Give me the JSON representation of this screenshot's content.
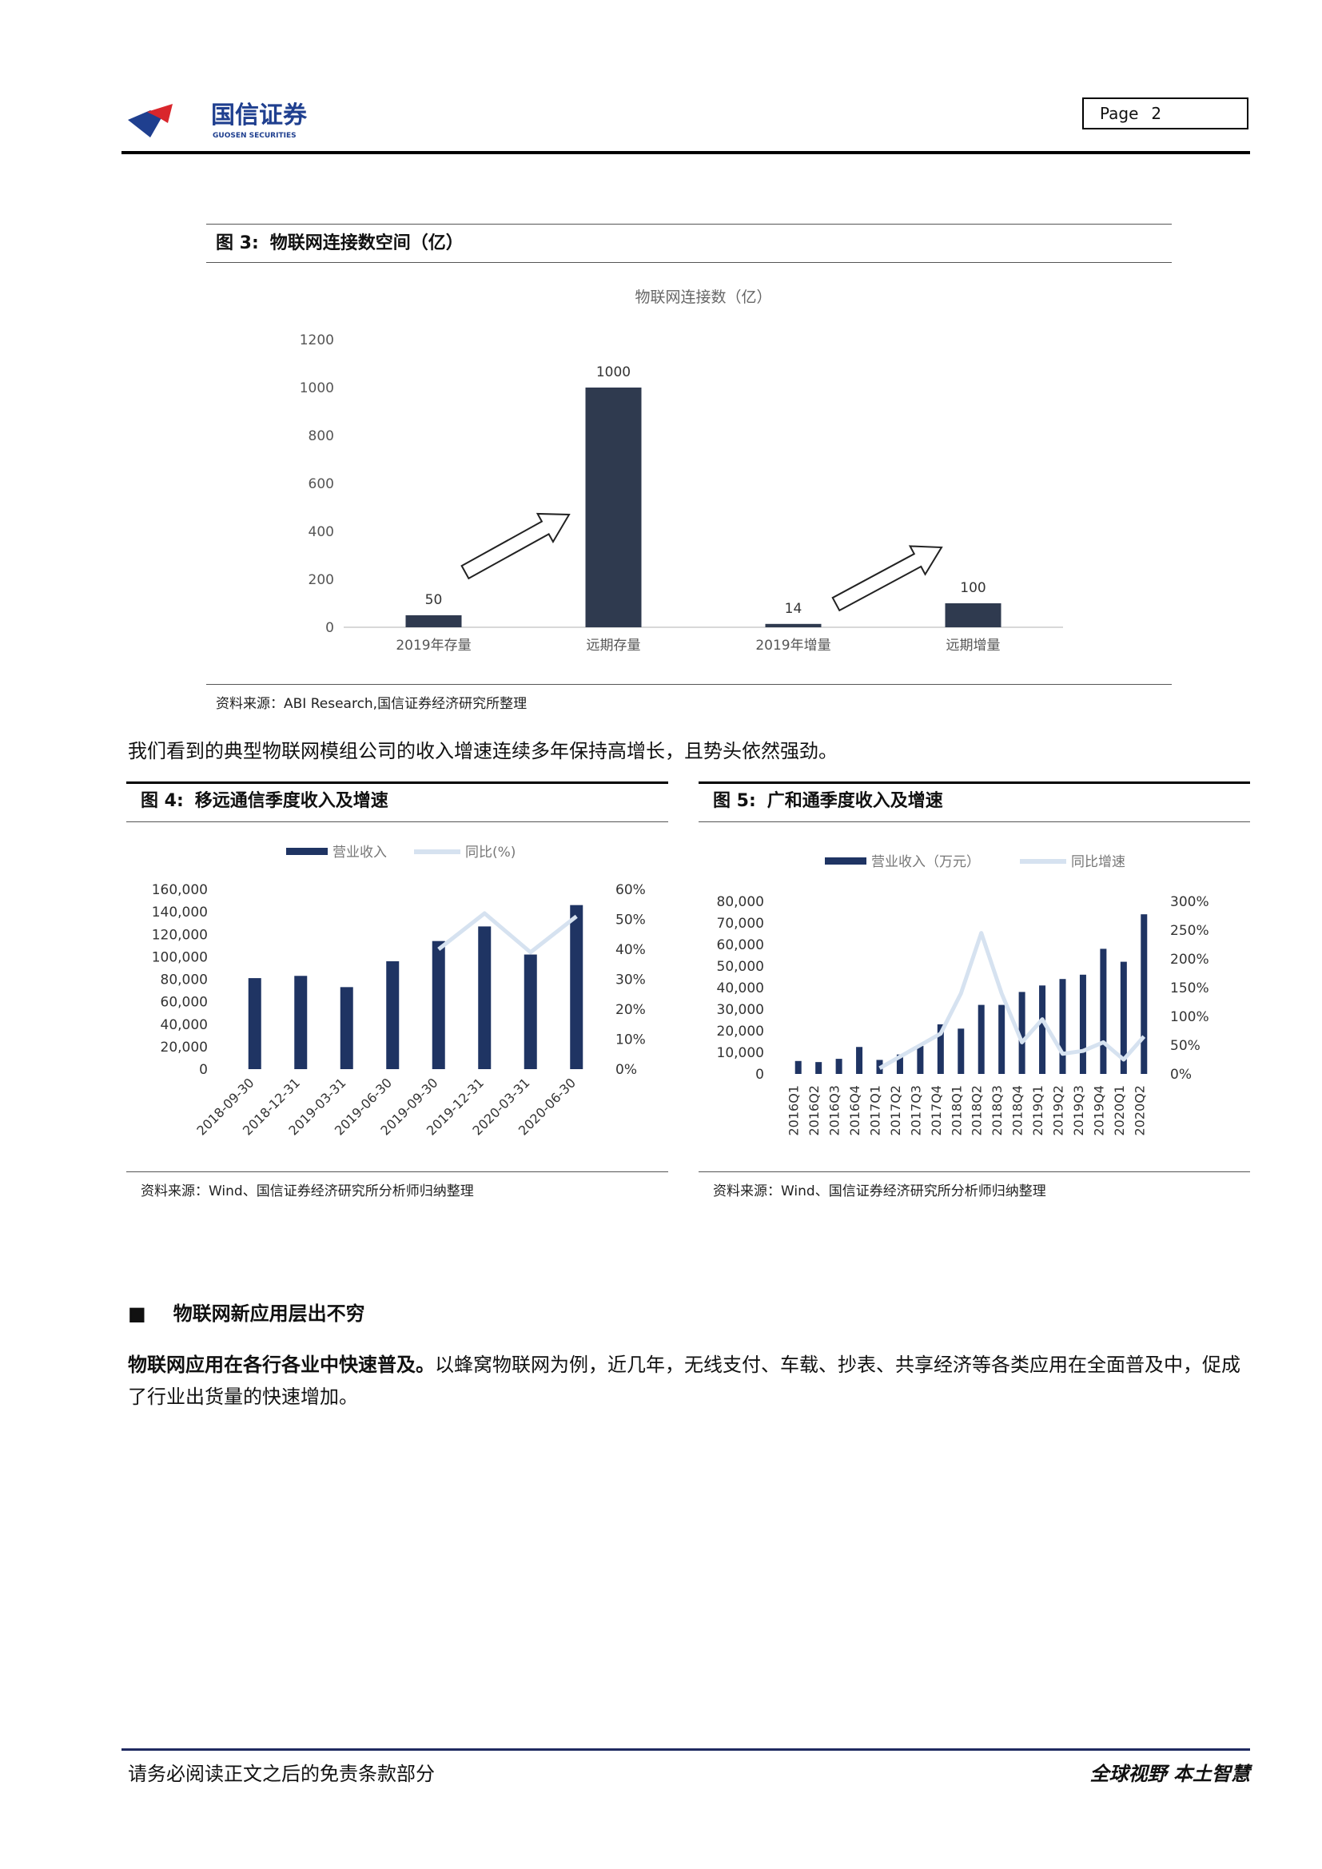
{
  "header": {
    "logo_cn": "国信证券",
    "logo_en": "GUOSEN SECURITIES",
    "page_label": "Page",
    "page_number": "2",
    "colors": {
      "logo_blue": "#1f3f8f",
      "logo_red": "#d9262c"
    }
  },
  "fig3": {
    "label": "图 3:",
    "title": "物联网连接数空间（亿）",
    "source": "资料来源：ABI Research,国信证券经济研究所整理",
    "chart_data": {
      "type": "bar",
      "title": "物联网连接数（亿）",
      "categories": [
        "2019年存量",
        "远期存量",
        "2019年增量",
        "远期增量"
      ],
      "values": [
        50,
        1000,
        14,
        100
      ],
      "ylim": [
        0,
        1200
      ],
      "yticks": [
        0,
        200,
        400,
        600,
        800,
        1000,
        1200
      ],
      "bar_color": "#2f3a4f",
      "grid": false
    }
  },
  "paragraph1": "我们看到的典型物联网模组公司的收入增速连续多年保持高增长，且势头依然强劲。",
  "fig4": {
    "label": "图 4:",
    "title": "移远通信季度收入及增速",
    "source": "资料来源：Wind、国信证券经济研究所分析师归纳整理",
    "chart_data": {
      "type": "bar",
      "categories": [
        "2018-09-30",
        "2018-12-31",
        "2019-03-31",
        "2019-06-30",
        "2019-09-30",
        "2019-12-31",
        "2020-03-31",
        "2020-06-30"
      ],
      "series": [
        {
          "name": "营业收入",
          "type": "bar",
          "axis": "left",
          "values": [
            81000,
            83000,
            73000,
            96000,
            114000,
            127000,
            102000,
            146000
          ],
          "color": "#1f3463"
        },
        {
          "name": "同比(%)",
          "type": "line",
          "axis": "right",
          "values": [
            null,
            null,
            null,
            null,
            40,
            52,
            39,
            51
          ],
          "color": "#d6e2f0"
        }
      ],
      "ylim_left": [
        0,
        160000
      ],
      "yticks_left": [
        "0",
        "20,000",
        "40,000",
        "60,000",
        "80,000",
        "100,000",
        "120,000",
        "140,000",
        "160,000"
      ],
      "ylim_right": [
        0,
        60
      ],
      "yticks_right": [
        "0%",
        "10%",
        "20%",
        "30%",
        "40%",
        "50%",
        "60%"
      ],
      "legend_position": "top-center"
    }
  },
  "fig5": {
    "label": "图 5:",
    "title": "广和通季度收入及增速",
    "source": "资料来源：Wind、国信证券经济研究所分析师归纳整理",
    "chart_data": {
      "type": "bar",
      "categories": [
        "2016Q1",
        "2016Q2",
        "2016Q3",
        "2016Q4",
        "2017Q1",
        "2017Q2",
        "2017Q3",
        "2017Q4",
        "2018Q1",
        "2018Q2",
        "2018Q3",
        "2018Q4",
        "2019Q1",
        "2019Q2",
        "2019Q3",
        "2019Q4",
        "2020Q1",
        "2020Q2"
      ],
      "series": [
        {
          "name": "营业收入（万元）",
          "type": "bar",
          "axis": "left",
          "values": [
            6000,
            5500,
            7000,
            12500,
            6500,
            9000,
            13000,
            23000,
            21000,
            32000,
            32000,
            38000,
            41000,
            44000,
            46000,
            58000,
            52000,
            74000
          ],
          "color": "#1f3463"
        },
        {
          "name": "同比增速",
          "type": "line",
          "axis": "right",
          "values": [
            null,
            null,
            null,
            null,
            10,
            30,
            50,
            70,
            140,
            245,
            140,
            55,
            95,
            35,
            40,
            55,
            25,
            65
          ],
          "color": "#d6e2f0"
        }
      ],
      "ylim_left": [
        0,
        80000
      ],
      "yticks_left": [
        "0",
        "10,000",
        "20,000",
        "30,000",
        "40,000",
        "50,000",
        "60,000",
        "70,000",
        "80,000"
      ],
      "ylim_right": [
        0,
        300
      ],
      "yticks_right": [
        "0%",
        "50%",
        "100%",
        "150%",
        "200%",
        "250%",
        "300%"
      ],
      "legend_position": "top-center"
    }
  },
  "section": {
    "bullet": "■",
    "heading": "物联网新应用层出不穷",
    "para_bold": "物联网应用在各行各业中快速普及。",
    "para_rest": "以蜂窝物联网为例，近几年，无线支付、车载、抄表、共享经济等各类应用在全面普及中，促成了行业出货量的快速增加。"
  },
  "footer": {
    "disclaimer": "请务必阅读正文之后的免责条款部分",
    "slogan": "全球视野  本土智慧"
  }
}
